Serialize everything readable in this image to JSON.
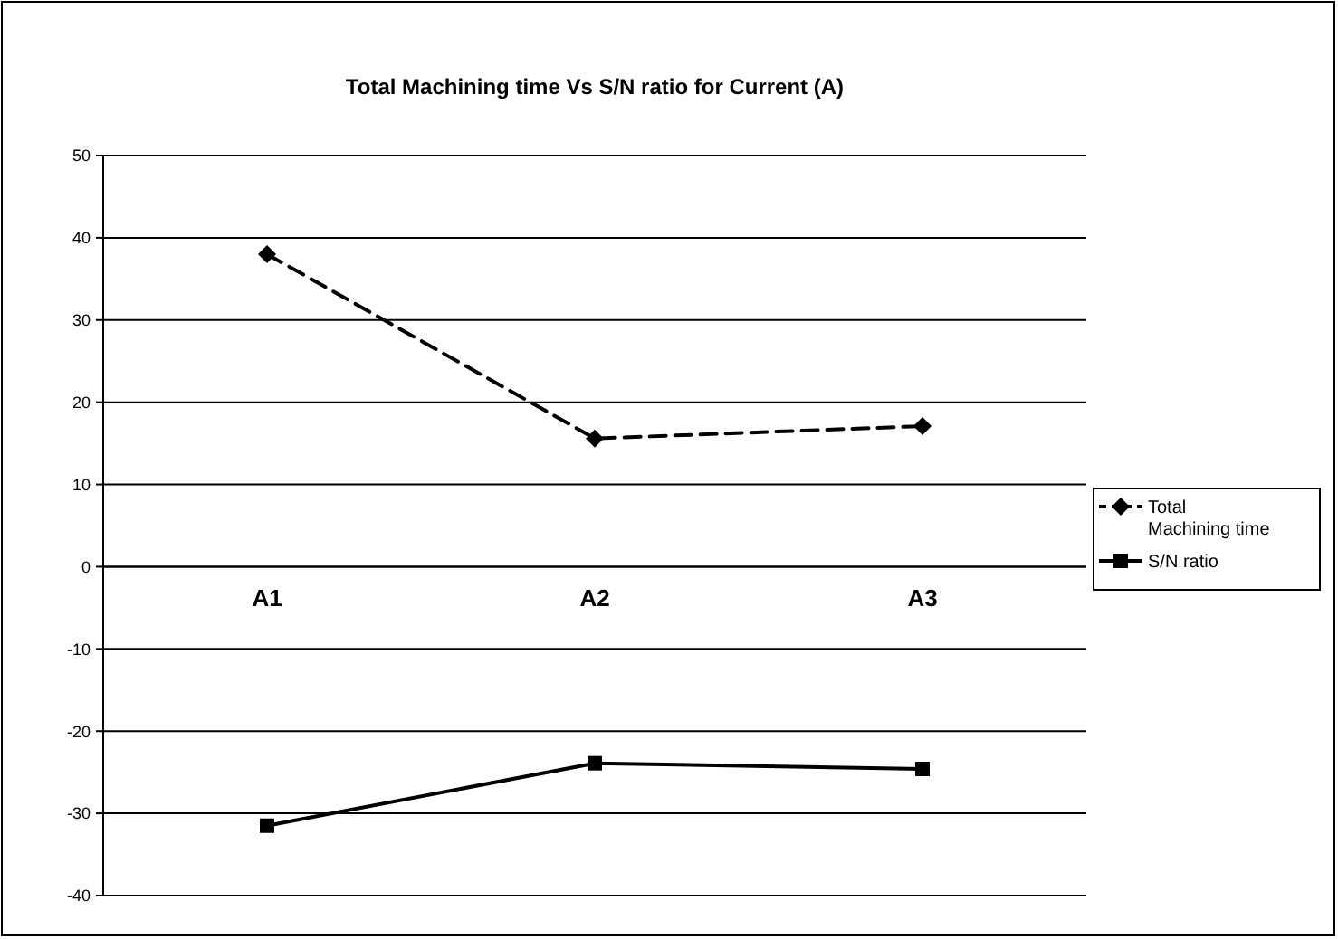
{
  "chart_data": {
    "type": "line",
    "title": "Total Machining time Vs S/N ratio for Current (A)",
    "categories": [
      "A1",
      "A2",
      "A3"
    ],
    "series": [
      {
        "name": "Total Machining time",
        "color": "#000000",
        "values": [
          38.0,
          15.6,
          17.1
        ],
        "marker": "diamond",
        "line_style": "dashed"
      },
      {
        "name": "S/N ratio",
        "color": "#000000",
        "values": [
          -31.5,
          -23.9,
          -24.6
        ],
        "marker": "square",
        "line_style": "solid"
      }
    ],
    "ylim": [
      -40,
      50
    ],
    "yticks": [
      -40,
      -30,
      -20,
      -10,
      0,
      10,
      20,
      30,
      40,
      50
    ],
    "grid": "y",
    "legend": "right"
  }
}
